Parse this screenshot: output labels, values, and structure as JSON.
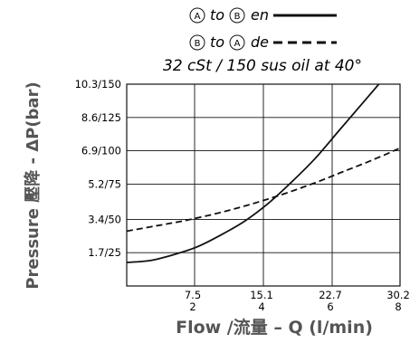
{
  "legend": {
    "line1": {
      "from": "A",
      "to_word": "to",
      "to": "B",
      "suffix": "en"
    },
    "line2": {
      "from": "B",
      "to_word": "to",
      "to": "A",
      "suffix": "de"
    }
  },
  "note": "32 cSt / 150 sus oil at 40°",
  "chart_data": {
    "type": "line",
    "xlabel": "Flow /流量 – Q (l/min)",
    "ylabel": "Pressure  壓降 - ΔP(bar)",
    "xlim": [
      0,
      30.2
    ],
    "ylim": [
      0,
      10.3
    ],
    "x_ticks": [
      {
        "value": 7.5,
        "label_top": "7.5",
        "label_bottom": "2"
      },
      {
        "value": 15.1,
        "label_top": "15.1",
        "label_bottom": "4"
      },
      {
        "value": 22.7,
        "label_top": "22.7",
        "label_bottom": "6"
      },
      {
        "value": 30.2,
        "label_top": "30.2",
        "label_bottom": "8"
      }
    ],
    "y_ticks": [
      {
        "value": 1.7,
        "label": "1.7/25"
      },
      {
        "value": 3.4,
        "label": "3.4/50"
      },
      {
        "value": 5.2,
        "label": "5.2/75"
      },
      {
        "value": 6.9,
        "label": "6.9/100"
      },
      {
        "value": 8.6,
        "label": "8.6/125"
      },
      {
        "value": 10.3,
        "label": "10.3/150"
      }
    ],
    "grid": true,
    "series": [
      {
        "name": "A to B en",
        "style": "solid",
        "x": [
          0,
          2.6,
          5.2,
          7.8,
          10.4,
          13.0,
          15.6,
          18.2,
          20.8,
          23.4,
          26.0,
          28.6
        ],
        "y": [
          1.2,
          1.3,
          1.6,
          2.0,
          2.6,
          3.3,
          4.2,
          5.3,
          6.5,
          7.9,
          9.3,
          10.7
        ]
      },
      {
        "name": "B to A de",
        "style": "dashed",
        "x": [
          0,
          3,
          6,
          9,
          12,
          15,
          18,
          21,
          24,
          27,
          30,
          31.5
        ],
        "y": [
          2.8,
          3.05,
          3.3,
          3.6,
          3.95,
          4.35,
          4.8,
          5.3,
          5.85,
          6.4,
          7.0,
          7.35
        ]
      }
    ]
  }
}
